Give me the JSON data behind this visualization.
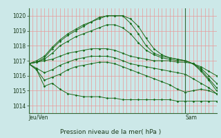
{
  "title": "Pression niveau de la mer( hPa )",
  "xlabel_left": "Jeu/Ven",
  "xlabel_right": "Sam",
  "ylim": [
    1013.5,
    1020.5
  ],
  "yticks": [
    1014,
    1015,
    1016,
    1017,
    1018,
    1019,
    1020
  ],
  "bg_color": "#cce8e8",
  "grid_color": "#e89898",
  "line_color": "#1a6b1a",
  "xmin": 0,
  "xmax": 48,
  "x_left_tick": 0,
  "x_right_tick": 40,
  "n_vgrid": 48,
  "values": [
    {
      "x": [
        0,
        2,
        4,
        6,
        8,
        10,
        12,
        14,
        16,
        18,
        20,
        22,
        24,
        26,
        28,
        30,
        32,
        34,
        36,
        38,
        40,
        42,
        44,
        46,
        48
      ],
      "y": [
        1016.8,
        1016.9,
        1017.2,
        1017.8,
        1018.3,
        1018.7,
        1019.0,
        1019.3,
        1019.6,
        1019.9,
        1020.0,
        1020.0,
        1020.0,
        1019.8,
        1019.3,
        1018.5,
        1017.8,
        1017.4,
        1017.2,
        1017.1,
        1017.0,
        1016.8,
        1016.5,
        1016.0,
        1015.5
      ]
    },
    {
      "x": [
        0,
        2,
        4,
        6,
        8,
        10,
        12,
        14,
        16,
        18,
        20,
        22,
        24,
        26,
        28,
        30,
        32,
        34,
        36,
        38,
        40,
        42,
        44,
        46,
        48
      ],
      "y": [
        1016.8,
        1017.0,
        1017.3,
        1017.9,
        1018.4,
        1018.8,
        1019.1,
        1019.4,
        1019.6,
        1019.8,
        1020.0,
        1020.0,
        1020.0,
        1019.5,
        1018.8,
        1018.0,
        1017.5,
        1017.3,
        1017.2,
        1017.1,
        1017.0,
        1016.8,
        1016.4,
        1015.8,
        1015.2
      ]
    },
    {
      "x": [
        0,
        2,
        4,
        6,
        8,
        10,
        12,
        14,
        16,
        18,
        20,
        22,
        24,
        26,
        28,
        30,
        32,
        34,
        36,
        38,
        40,
        42,
        44,
        46,
        48
      ],
      "y": [
        1016.8,
        1016.9,
        1017.1,
        1017.5,
        1018.0,
        1018.3,
        1018.6,
        1018.8,
        1019.0,
        1019.2,
        1019.4,
        1019.4,
        1019.2,
        1018.8,
        1018.2,
        1017.7,
        1017.4,
        1017.2,
        1017.1,
        1017.0,
        1017.0,
        1016.8,
        1016.3,
        1015.7,
        1015.0
      ]
    },
    {
      "x": [
        0,
        2,
        4,
        6,
        8,
        10,
        12,
        14,
        16,
        18,
        20,
        22,
        24,
        26,
        28,
        30,
        32,
        34,
        36,
        38,
        40,
        42,
        44,
        46,
        48
      ],
      "y": [
        1016.8,
        1016.9,
        1017.0,
        1017.1,
        1017.3,
        1017.5,
        1017.6,
        1017.7,
        1017.8,
        1017.8,
        1017.8,
        1017.7,
        1017.5,
        1017.3,
        1017.2,
        1017.1,
        1017.0,
        1017.0,
        1017.0,
        1016.9,
        1016.9,
        1016.8,
        1016.6,
        1016.3,
        1016.0
      ]
    },
    {
      "x": [
        0,
        2,
        4,
        6,
        8,
        10,
        12,
        14,
        16,
        18,
        20,
        22,
        24,
        26,
        28,
        30,
        32,
        34,
        36,
        38,
        40,
        42,
        44,
        46,
        48
      ],
      "y": [
        1016.8,
        1016.5,
        1016.2,
        1016.4,
        1016.7,
        1016.9,
        1017.1,
        1017.2,
        1017.3,
        1017.3,
        1017.3,
        1017.2,
        1017.0,
        1016.8,
        1016.7,
        1016.6,
        1016.5,
        1016.4,
        1016.3,
        1016.2,
        1016.1,
        1015.8,
        1015.5,
        1015.2,
        1014.8
      ]
    },
    {
      "x": [
        0,
        2,
        4,
        6,
        8,
        10,
        12,
        14,
        16,
        18,
        20,
        22,
        24,
        26,
        28,
        30,
        32,
        34,
        36,
        38,
        40,
        42,
        44,
        46,
        48
      ],
      "y": [
        1016.8,
        1016.4,
        1015.7,
        1015.9,
        1016.1,
        1016.4,
        1016.6,
        1016.7,
        1016.8,
        1016.9,
        1016.9,
        1016.8,
        1016.6,
        1016.4,
        1016.2,
        1016.0,
        1015.8,
        1015.6,
        1015.4,
        1015.1,
        1014.9,
        1015.0,
        1015.1,
        1015.0,
        1014.8
      ]
    },
    {
      "x": [
        0,
        2,
        4,
        6,
        8,
        10,
        12,
        14,
        16,
        18,
        20,
        22,
        24,
        26,
        28,
        30,
        32,
        34,
        36,
        38,
        40,
        42,
        44,
        46,
        48
      ],
      "y": [
        1016.8,
        1016.4,
        1015.3,
        1015.5,
        1015.1,
        1014.8,
        1014.7,
        1014.6,
        1014.6,
        1014.6,
        1014.5,
        1014.5,
        1014.4,
        1014.4,
        1014.4,
        1014.4,
        1014.4,
        1014.4,
        1014.4,
        1014.3,
        1014.3,
        1014.3,
        1014.3,
        1014.3,
        1014.3
      ]
    }
  ]
}
